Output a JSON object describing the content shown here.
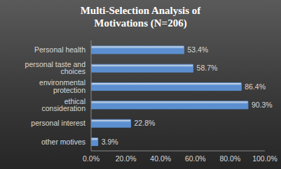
{
  "chart_data": {
    "type": "bar",
    "title": "Multi-Selection Analysis of Motivations (N=206)",
    "orientation": "horizontal",
    "categories": [
      "Personal health",
      "personal taste and choices",
      "environmental protection",
      "ethical consideration",
      "personal interest",
      "other motives"
    ],
    "values": [
      53.4,
      58.7,
      86.4,
      90.3,
      22.8,
      3.9
    ],
    "value_labels": [
      "53.4%",
      "58.7%",
      "86.4%",
      "90.3%",
      "22.8%",
      "3.9%"
    ],
    "data_labels": true,
    "color": "#5b8fd0",
    "xlim": [
      0,
      100
    ],
    "xticks": [
      {
        "value": 0,
        "label": "0.0%"
      },
      {
        "value": 20,
        "label": "20.0%"
      },
      {
        "value": 40,
        "label": "40.0%"
      },
      {
        "value": 60,
        "label": "60.0%"
      },
      {
        "value": 80,
        "label": "80.0%"
      },
      {
        "value": 100,
        "label": "100.0%"
      }
    ],
    "grid": false
  }
}
